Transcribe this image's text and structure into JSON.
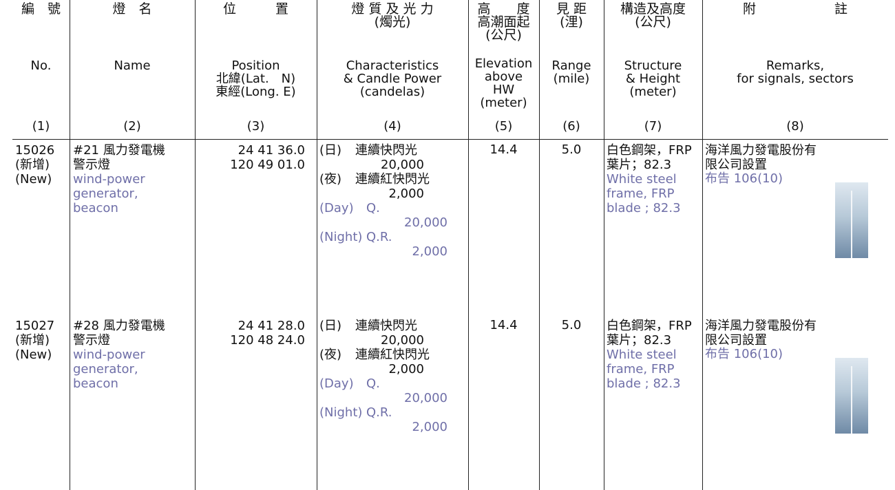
{
  "header": {
    "columns": [
      {
        "zh": [
          "編　號"
        ],
        "en": [
          "No."
        ],
        "num": "(1)"
      },
      {
        "zh": [
          "燈　名"
        ],
        "en": [
          "Name"
        ],
        "num": "(2)"
      },
      {
        "zh": [
          "位　　　置"
        ],
        "en": [
          "Position",
          "北緯(Lat.　N)",
          "東經(Long. E)"
        ],
        "num": "(3)"
      },
      {
        "zh": [
          "燈 質 及 光 力",
          "(燭光)"
        ],
        "en": [
          "Characteristics",
          "& Candle Power",
          "(candelas)"
        ],
        "num": "(4)"
      },
      {
        "zh": [
          "高　　度",
          "高潮面起",
          "(公尺)"
        ],
        "en": [
          "Elevation",
          "above",
          "HW",
          "(meter)"
        ],
        "num": "(5)"
      },
      {
        "zh": [
          "見 距",
          "(浬)"
        ],
        "en": [
          "Range",
          "(mile)"
        ],
        "num": "(6)"
      },
      {
        "zh": [
          "構造及高度",
          "(公尺)"
        ],
        "en": [
          "Structure",
          "& Height",
          "(meter)"
        ],
        "num": "(7)"
      },
      {
        "zh": [
          "附　　　　　　註"
        ],
        "en": [
          "Remarks,",
          "for signals, sectors"
        ],
        "num": "(8)"
      }
    ]
  },
  "rows": [
    {
      "no": [
        "15026",
        "(新增)",
        "(New)"
      ],
      "name_zh": [
        "#21 風力發電機",
        "警示燈"
      ],
      "name_en": [
        "wind-power",
        "generator,",
        "beacon"
      ],
      "position": [
        "24 41 36.0",
        "120 49 01.0"
      ],
      "char_zh": [
        {
          "tag": "(日)",
          "text": "連續快閃光",
          "power": "20,000"
        },
        {
          "tag": "(夜)",
          "text": "連續紅快閃光",
          "power": "2,000"
        }
      ],
      "char_en": [
        {
          "tag": "(Day)",
          "text": "Q.",
          "power": "20,000"
        },
        {
          "tag": "(Night)",
          "text": "Q.R.",
          "power": "2,000"
        }
      ],
      "elevation": "14.4",
      "range": "5.0",
      "structure_zh": [
        "白色鋼架，FRP",
        "葉片；82.3"
      ],
      "structure_en": [
        "White steel",
        "frame, FRP",
        "blade ; 82.3"
      ],
      "remarks_zh": [
        "海洋風力發電股份有",
        "限公司設置"
      ],
      "remarks_en": "布告 106(10)"
    },
    {
      "no": [
        "15027",
        "(新增)",
        "(New)"
      ],
      "name_zh": [
        "#28 風力發電機",
        "警示燈"
      ],
      "name_en": [
        "wind-power",
        "generator,",
        "beacon"
      ],
      "position": [
        "24 41 28.0",
        "120 48 24.0"
      ],
      "char_zh": [
        {
          "tag": "(日)",
          "text": "連續快閃光",
          "power": "20,000"
        },
        {
          "tag": "(夜)",
          "text": "連續紅快閃光",
          "power": "2,000"
        }
      ],
      "char_en": [
        {
          "tag": "(Day)",
          "text": "Q.",
          "power": "20,000"
        },
        {
          "tag": "(Night)",
          "text": "Q.R.",
          "power": "2,000"
        }
      ],
      "elevation": "14.4",
      "range": "5.0",
      "structure_zh": [
        "白色鋼架，FRP",
        "葉片；82.3"
      ],
      "structure_en": [
        "White steel",
        "frame, FRP",
        "blade ; 82.3"
      ],
      "remarks_zh": [
        "海洋風力發電股份有",
        "限公司設置"
      ],
      "remarks_en": "布告 106(10)"
    }
  ]
}
